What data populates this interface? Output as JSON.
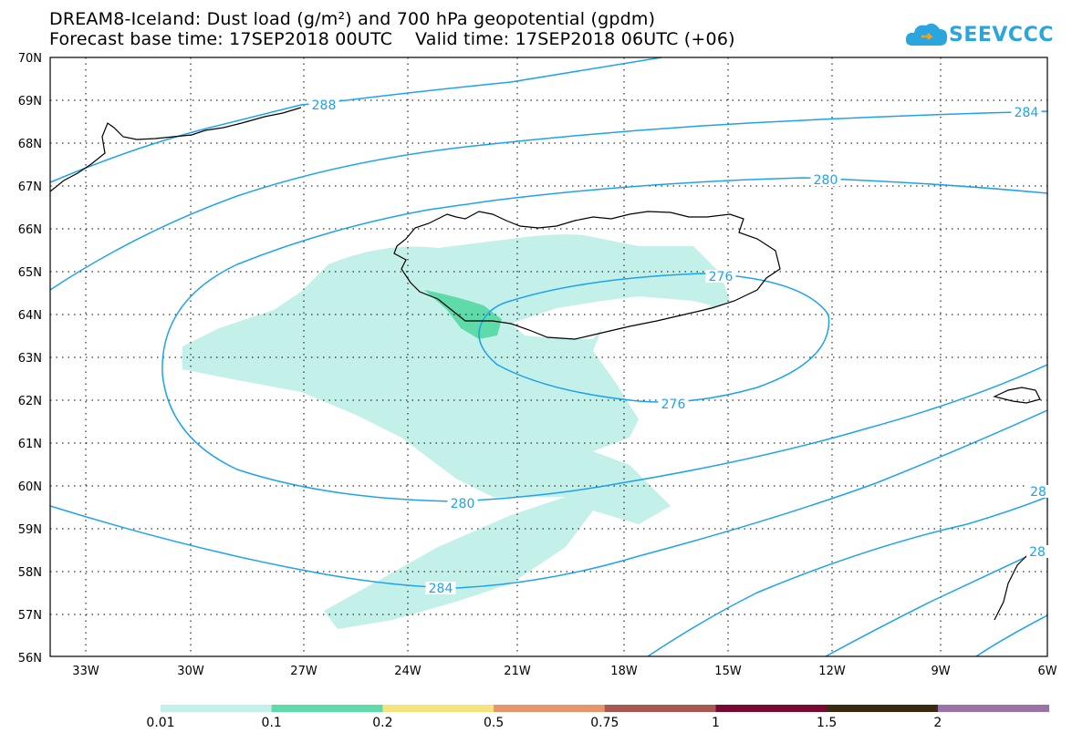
{
  "title_line1": "DREAM8-Iceland: Dust load (g/m²) and 700 hPa geopotential (gpdm)",
  "title_line2": "Forecast base time: 17SEP2018 00UTC    Valid time: 17SEP2018 06UTC (+06)",
  "logo_text": "SEEVCCC",
  "lat_labels": [
    "70N",
    "69N",
    "68N",
    "67N",
    "66N",
    "65N",
    "64N",
    "63N",
    "62N",
    "61N",
    "60N",
    "59N",
    "58N",
    "57N",
    "56N"
  ],
  "lon_labels": [
    "33W",
    "30W",
    "27W",
    "24W",
    "21W",
    "18W",
    "15W",
    "12W",
    "9W",
    "6W"
  ],
  "contour_labels": [
    "288",
    "284",
    "280",
    "276",
    "276",
    "280",
    "284",
    "28",
    "28"
  ],
  "legend": {
    "labels": [
      "0.01",
      "0.1",
      "0.2",
      "0.5",
      "0.75",
      "1",
      "1.5",
      "2"
    ],
    "colors": [
      "#c3f0e8",
      "#5fdbaa",
      "#f5e47e",
      "#e8956c",
      "#a85850",
      "#7a0830",
      "#3a2a10",
      "#9a72a8"
    ]
  },
  "colors": {
    "contour": "#1ea2f0",
    "dust_light": "#c3f0e8",
    "dust_mid": "#5fdbaa",
    "coast": "#000000"
  }
}
